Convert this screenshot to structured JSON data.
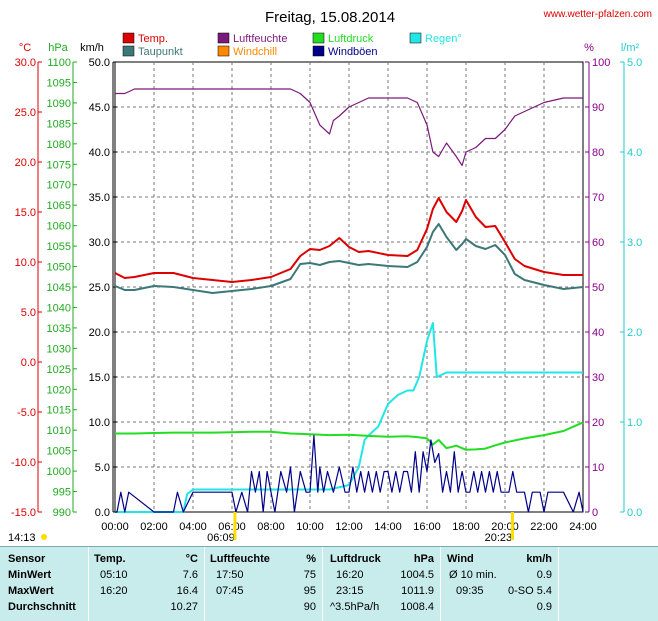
{
  "title": "Freitag, 15.08.2014",
  "source": "www.wetter-pfalzen.com",
  "colors": {
    "temp": "#dd0000",
    "dewpoint": "#3d7878",
    "humidity": "#7a1a7a",
    "pressure": "#22dd22",
    "windchill": "#ff8800",
    "windgust": "#000088",
    "rain": "#22e6e6",
    "axis_temp": "#dd0000",
    "axis_pressure": "#22aa22",
    "axis_wind": "#000000",
    "axis_humidity": "#880088",
    "axis_rain": "#22cccc"
  },
  "legend": [
    {
      "label": "Temp.",
      "color": "#dd0000"
    },
    {
      "label": "Luftfeuchte",
      "color": "#7a1a7a"
    },
    {
      "label": "Luftdruck",
      "color": "#22dd22"
    },
    {
      "label": "Regen°",
      "color": "#22e6e6"
    },
    {
      "label": "Taupunkt",
      "color": "#3d7878"
    },
    {
      "label": "Windchill",
      "color": "#ff8800"
    },
    {
      "label": "Windböen",
      "color": "#000088"
    }
  ],
  "axis_units": {
    "temp": "°C",
    "pressure": "hPa",
    "wind": "km/h",
    "humidity": "%",
    "rain": "l/m²"
  },
  "chart_data": {
    "type": "line",
    "x_ticks": [
      "00:00",
      "02:00",
      "04:00",
      "06:00",
      "08:00",
      "10:00",
      "12:00",
      "14:00",
      "16:00",
      "18:00",
      "20:00",
      "22:00",
      "24:00"
    ],
    "axes": {
      "temp": {
        "ticks": [
          "30.0",
          "25.0",
          "20.0",
          "15.0",
          "10.0",
          "5.0",
          "0.0",
          "-5.0",
          "-10.0",
          "-15.0"
        ],
        "ylim": [
          -15,
          30
        ]
      },
      "pressure": {
        "ticks": [
          "1100",
          "1095",
          "1090",
          "1085",
          "1080",
          "1075",
          "1070",
          "1065",
          "1060",
          "1055",
          "1050",
          "1045",
          "1040",
          "1035",
          "1030",
          "1025",
          "1020",
          "1015",
          "1010",
          "1005",
          "1000",
          "995",
          "990"
        ],
        "ylim": [
          990,
          1100
        ]
      },
      "wind": {
        "ticks": [
          "50.0",
          "45.0",
          "40.0",
          "35.0",
          "30.0",
          "25.0",
          "20.0",
          "15.0",
          "10.0",
          "5.0",
          "0.0"
        ],
        "ylim": [
          0,
          50
        ]
      },
      "humidity": {
        "ticks": [
          "100",
          "90",
          "80",
          "70",
          "60",
          "50",
          "40",
          "30",
          "20",
          "10",
          "0"
        ],
        "ylim": [
          0,
          100
        ]
      },
      "rain": {
        "ticks": [
          "5.0",
          "4.0",
          "3.0",
          "2.0",
          "1.0",
          "0.0"
        ],
        "ylim": [
          0,
          5
        ]
      }
    },
    "grid": true,
    "series": [
      {
        "name": "Temp.",
        "key": "temp",
        "axis": "temp",
        "x": [
          0,
          0.5,
          1,
          2,
          3,
          4,
          5,
          6,
          7,
          8,
          9,
          9.5,
          10,
          10.5,
          11,
          11.5,
          12,
          12.5,
          13,
          14,
          15,
          15.5,
          16,
          16.3,
          16.6,
          17,
          17.5,
          17.8,
          18,
          18.5,
          19,
          19.5,
          20,
          20.5,
          21,
          22,
          23,
          24
        ],
        "y": [
          8.9,
          8.4,
          8.5,
          8.9,
          8.9,
          8.4,
          8.2,
          8.0,
          8.2,
          8.5,
          9.3,
          10.6,
          11.3,
          11.2,
          11.6,
          12.4,
          11.5,
          11.0,
          11.1,
          10.7,
          10.6,
          11.2,
          13.3,
          15.3,
          16.4,
          15.0,
          14.0,
          15.1,
          16.2,
          14.5,
          13.5,
          13.6,
          12.0,
          10.3,
          9.6,
          9.0,
          8.7,
          8.7
        ]
      },
      {
        "name": "Taupunkt",
        "key": "dewpoint",
        "axis": "temp",
        "x": [
          0,
          0.5,
          1,
          2,
          3,
          4,
          5,
          6,
          7,
          8,
          9,
          9.5,
          10,
          10.5,
          11,
          11.5,
          12,
          12.5,
          13,
          14,
          15,
          15.5,
          16,
          16.3,
          16.6,
          17,
          17.5,
          17.8,
          18,
          18.5,
          19,
          19.5,
          20,
          20.5,
          21,
          22,
          23,
          24
        ],
        "y": [
          7.6,
          7.2,
          7.2,
          7.6,
          7.5,
          7.2,
          6.9,
          7.1,
          7.3,
          7.6,
          8.3,
          9.8,
          9.9,
          9.7,
          10.0,
          10.1,
          9.9,
          9.7,
          9.8,
          9.6,
          9.5,
          10.0,
          11.5,
          13.0,
          13.8,
          12.5,
          11.2,
          11.8,
          12.3,
          11.6,
          11.3,
          11.7,
          10.7,
          8.8,
          8.2,
          7.7,
          7.3,
          7.5
        ]
      },
      {
        "name": "Luftfeuchte",
        "key": "humidity",
        "axis": "humidity",
        "x": [
          0,
          0.5,
          1,
          2,
          3,
          4,
          5,
          6,
          7,
          8,
          9,
          9.5,
          10,
          10.5,
          11,
          11.2,
          11.5,
          12,
          12.5,
          13,
          14,
          15,
          15.5,
          16,
          16.3,
          16.6,
          17,
          17.5,
          17.8,
          18,
          18.5,
          19,
          19.5,
          20,
          20.5,
          21,
          22,
          23,
          24
        ],
        "y": [
          93,
          93,
          94,
          94,
          94,
          94,
          94,
          94,
          94,
          94,
          94,
          93,
          91,
          86,
          84,
          87,
          88,
          90,
          91,
          92,
          92,
          92,
          91,
          86,
          80,
          79,
          82,
          79,
          77,
          80,
          81,
          83,
          83,
          85,
          88,
          89,
          91,
          92,
          92
        ]
      },
      {
        "name": "Luftdruck",
        "key": "pressure",
        "axis": "pressure",
        "x": [
          0,
          1,
          2,
          3,
          4,
          5,
          6,
          7,
          8,
          9,
          10,
          11,
          12,
          13,
          14,
          15,
          15.5,
          16,
          16.3,
          16.6,
          17,
          17.5,
          18,
          18.5,
          19,
          19.5,
          20,
          21,
          22,
          23,
          24
        ],
        "y": [
          1009.2,
          1009.2,
          1009.3,
          1009.4,
          1009.4,
          1009.4,
          1009.5,
          1009.6,
          1009.6,
          1009.2,
          1009.0,
          1008.8,
          1008.9,
          1008.6,
          1008.4,
          1008.5,
          1008.3,
          1008.0,
          1006.5,
          1007.6,
          1005.6,
          1006.2,
          1005.2,
          1005.3,
          1005.5,
          1006.3,
          1007.0,
          1008.0,
          1008.8,
          1009.8,
          1011.9
        ]
      },
      {
        "name": "Regen°",
        "key": "rain",
        "axis": "rain",
        "x": [
          0,
          3.5,
          3.7,
          4,
          5,
          6,
          7,
          8,
          9,
          10,
          11,
          12,
          12.5,
          12.8,
          13,
          13.5,
          14,
          14.5,
          15,
          15.3,
          15.6,
          16,
          16.3,
          16.5,
          17,
          18,
          19,
          20,
          21,
          22,
          23,
          24
        ],
        "y": [
          0,
          0,
          0.2,
          0.25,
          0.25,
          0.25,
          0.25,
          0.25,
          0.25,
          0.25,
          0.25,
          0.3,
          0.5,
          0.8,
          0.85,
          0.95,
          1.2,
          1.3,
          1.35,
          1.35,
          1.5,
          1.9,
          2.1,
          1.5,
          1.55,
          1.55,
          1.55,
          1.55,
          1.55,
          1.55,
          1.55,
          1.55
        ]
      },
      {
        "name": "Windböen",
        "key": "windgust",
        "axis": "wind",
        "x": [
          0,
          0.1,
          0.3,
          0.5,
          0.7,
          2,
          3,
          3.2,
          3.5,
          4,
          6,
          6.2,
          6.5,
          6.8,
          7,
          7.2,
          7.4,
          7.6,
          7.8,
          8,
          8.2,
          8.5,
          8.8,
          9,
          9.2,
          9.5,
          9.8,
          10,
          10.2,
          10.4,
          10.5,
          10.7,
          10.9,
          11.2,
          11.5,
          11.8,
          12,
          12.2,
          12.4,
          12.6,
          12.8,
          13,
          13.2,
          13.4,
          13.6,
          13.8,
          14,
          14.2,
          14.4,
          14.6,
          14.8,
          15,
          15.2,
          15.4,
          15.6,
          15.8,
          16,
          16.2,
          16.4,
          16.6,
          16.8,
          17,
          17.2,
          17.4,
          17.6,
          17.8,
          18,
          18.2,
          18.4,
          18.6,
          18.8,
          19,
          19.2,
          19.4,
          19.6,
          19.8,
          20,
          20.2,
          20.4,
          20.6,
          20.8,
          21,
          21.2,
          21.4,
          21.6,
          21.8,
          22,
          22.2,
          22.5,
          23,
          23.5,
          23.8,
          24
        ],
        "y": [
          0,
          0,
          2.2,
          0,
          2.2,
          0,
          0,
          2.2,
          0,
          2.2,
          2.2,
          0,
          2.2,
          0,
          4.5,
          2.2,
          4.5,
          0,
          4.5,
          2.2,
          0,
          4.5,
          2.2,
          5.0,
          0,
          4.5,
          2.2,
          2.2,
          8.5,
          2.2,
          5.0,
          2.2,
          4.5,
          2.2,
          5.0,
          2.2,
          2.2,
          5.0,
          2.2,
          4.5,
          2.2,
          4.5,
          2.2,
          4.5,
          2.2,
          4.5,
          4.5,
          2.2,
          4.5,
          2.2,
          4.5,
          4.5,
          2.2,
          6.7,
          2.2,
          6.7,
          4.5,
          8.0,
          5.5,
          6.5,
          2.2,
          4.5,
          2.2,
          6.7,
          2.2,
          4.5,
          2.2,
          2.2,
          4.5,
          2.2,
          4.5,
          2.2,
          4.5,
          2.2,
          4.5,
          2.2,
          2.2,
          2.2,
          4.5,
          2.2,
          2.2,
          2.2,
          0,
          2.2,
          2.2,
          2.2,
          0,
          2.2,
          2.2,
          2.2,
          0,
          2.2,
          0
        ]
      }
    ]
  },
  "sun": {
    "rise": "06:09",
    "set": "20:23",
    "rise_x": 6.15,
    "set_x": 20.38,
    "daylight": "14:13"
  },
  "stats": {
    "headers": {
      "sensor": "Sensor",
      "temp": "Temp.",
      "temp_unit": "°C",
      "hum": "Luftfeuchte",
      "hum_unit": "%",
      "press": "Luftdruck",
      "press_unit": "hPa",
      "wind": "Wind",
      "wind_unit": "km/h"
    },
    "rows": [
      {
        "label": "MinWert",
        "temp_time": "05:10",
        "temp_val": "7.6",
        "hum_time": "17:50",
        "hum_val": "75",
        "press_time": "16:20",
        "press_val": "1004.5",
        "wind_time": "Ø 10 min.",
        "wind_val": "0.9"
      },
      {
        "label": "MaxWert",
        "temp_time": "16:20",
        "temp_val": "16.4",
        "hum_time": "07:45",
        "hum_val": "95",
        "press_time": "23:15",
        "press_val": "1011.9",
        "wind_time": "09:35",
        "wind_dir": "0-SO",
        "wind_val": "5.4"
      },
      {
        "label": "Durchschnitt",
        "temp_time": "",
        "temp_val": "10.27",
        "hum_time": "",
        "hum_val": "90",
        "press_time": "^3.5hPa/h",
        "press_val": "1008.4",
        "wind_time": "",
        "wind_val": "0.9"
      }
    ]
  }
}
